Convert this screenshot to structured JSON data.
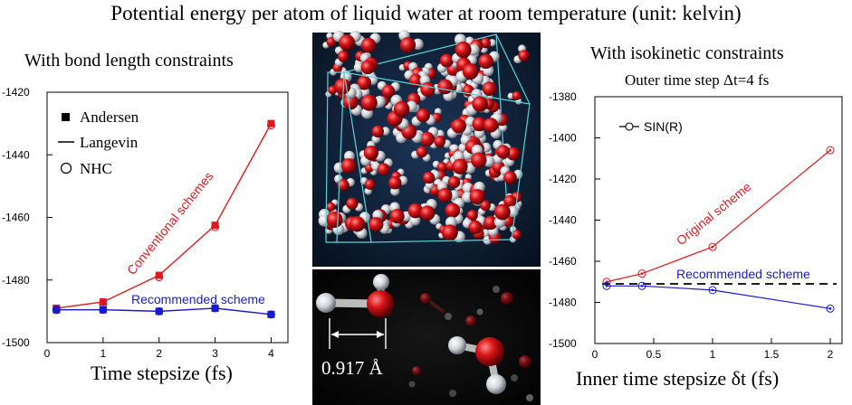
{
  "page_title": "Potential energy per atom of liquid water at room temperature (unit: kelvin)",
  "colors": {
    "red": "#e0191e",
    "blue": "#1a1ad0",
    "black": "#000000",
    "image_bg": "#0e1f38"
  },
  "images": {
    "water_box": "molecular-simulation-box-of-water-molecules",
    "close_up": "close-up-of-water-molecules",
    "bond_label": "0.917 Å"
  },
  "chart_data": [
    {
      "type": "line",
      "title": "With bond length constraints",
      "xlabel": "Time stepsize (fs)",
      "ylabel": "",
      "xlim": [
        0,
        4.3
      ],
      "ylim": [
        -1500,
        -1420
      ],
      "xticks": [
        0,
        1,
        2,
        3,
        4
      ],
      "yticks": [
        -1500,
        -1480,
        -1460,
        -1440,
        -1420
      ],
      "legend": {
        "position": "top-left",
        "entries": [
          {
            "marker": "filled-square",
            "label": "Andersen"
          },
          {
            "marker": "line",
            "label": "Langevin"
          },
          {
            "marker": "open-circle",
            "label": "NHC"
          }
        ]
      },
      "annotations": [
        {
          "text": "Conventional schemes",
          "color": "#e0191e"
        },
        {
          "text": "Recommended scheme",
          "color": "#1a1ad0"
        }
      ],
      "series": [
        {
          "color": "#e0191e",
          "x": [
            0.167,
            1,
            2,
            3,
            4
          ],
          "y": [
            -1489,
            -1487,
            -1478.5,
            -1462.5,
            -1430
          ]
        },
        {
          "color": "#1a1ad0",
          "x": [
            0.167,
            1,
            2,
            3,
            4
          ],
          "y": [
            -1489.5,
            -1489.5,
            -1490,
            -1489,
            -1491
          ]
        }
      ]
    },
    {
      "type": "line",
      "title": "With isokinetic constraints",
      "subtitle": "Outer time step Δt=4 fs",
      "xlabel": "Inner time stepsize δt (fs)",
      "ylabel": "",
      "xlim": [
        0,
        2.1
      ],
      "ylim": [
        -1500,
        -1380
      ],
      "xticks": [
        0,
        0.5,
        1,
        1.5,
        2
      ],
      "xtick_labels": [
        "0",
        "0.5",
        "1",
        "1.5",
        "2"
      ],
      "yticks": [
        -1500,
        -1480,
        -1460,
        -1440,
        -1420,
        -1400,
        -1380
      ],
      "legend": {
        "position": "top-left",
        "entries": [
          {
            "marker": "line-open-circle",
            "label": "SIN(R)"
          }
        ]
      },
      "annotations": [
        {
          "text": "Original scheme",
          "color": "#e0191e"
        },
        {
          "text": "Recommended scheme",
          "color": "#1a1ad0"
        }
      ],
      "reference_line": {
        "y": -1471,
        "style": "dashed",
        "color": "#000000"
      },
      "series": [
        {
          "color": "#e0191e",
          "x": [
            0.1,
            0.4,
            1,
            2
          ],
          "y": [
            -1470,
            -1466,
            -1453,
            -1406
          ]
        },
        {
          "color": "#1a1ad0",
          "x": [
            0.1,
            0.4,
            1,
            2
          ],
          "y": [
            -1472,
            -1472,
            -1474,
            -1483
          ]
        }
      ]
    }
  ]
}
